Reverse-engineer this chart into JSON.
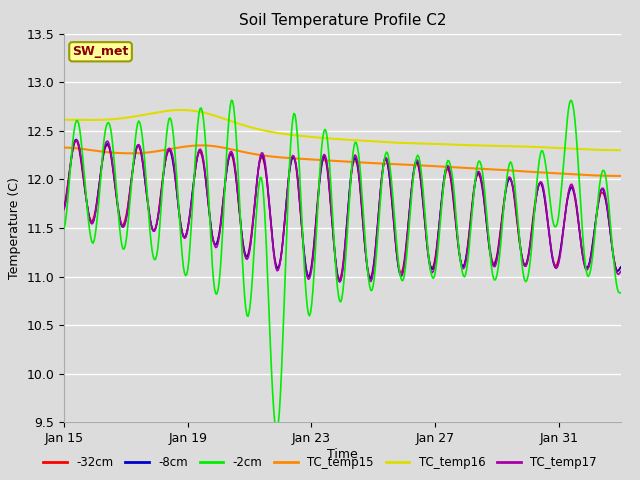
{
  "title": "Soil Temperature Profile C2",
  "xlabel": "Time",
  "ylabel": "Temperature (C)",
  "ylim": [
    9.5,
    13.5
  ],
  "yticks": [
    9.5,
    10.0,
    10.5,
    11.0,
    11.5,
    12.0,
    12.5,
    13.0,
    13.5
  ],
  "xtick_labels": [
    "Jan 15",
    "Jan 19",
    "Jan 23",
    "Jan 27",
    "Jan 31"
  ],
  "xtick_positions": [
    0,
    4,
    8,
    12,
    16
  ],
  "xlim": [
    0,
    18
  ],
  "bg_color": "#dcdcdc",
  "plot_bg_color": "#dcdcdc",
  "fig_bg_color": "#dcdcdc",
  "sw_met_label": "SW_met",
  "sw_met_bg": "#ffff99",
  "sw_met_border": "#999900",
  "sw_met_color": "#880000",
  "legend_entries": [
    "-32cm",
    "-8cm",
    "-2cm",
    "TC_temp15",
    "TC_temp16",
    "TC_temp17"
  ],
  "line_colors": {
    "-32cm": "#ff0000",
    "-8cm": "#0000cc",
    "-2cm": "#00ee00",
    "TC_temp15": "#ff8800",
    "TC_temp16": "#dddd00",
    "TC_temp17": "#aa00aa"
  },
  "line_widths": {
    "-32cm": 1.2,
    "-8cm": 1.2,
    "-2cm": 1.2,
    "TC_temp15": 1.5,
    "TC_temp16": 1.5,
    "TC_temp17": 1.2
  },
  "n_points": 500,
  "n_days": 18
}
